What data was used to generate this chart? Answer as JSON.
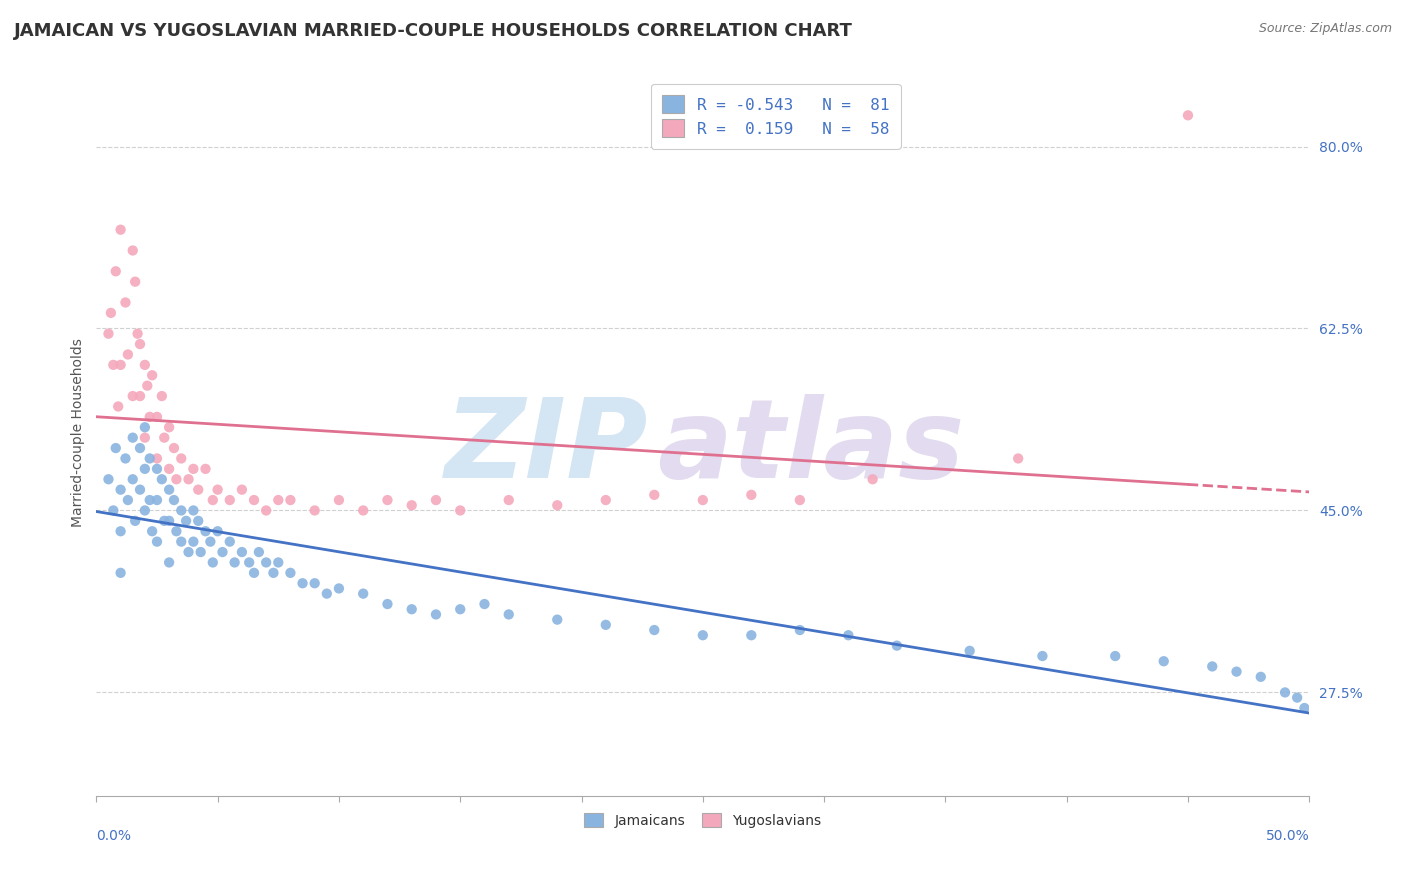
{
  "title": "JAMAICAN VS YUGOSLAVIAN MARRIED-COUPLE HOUSEHOLDS CORRELATION CHART",
  "source": "Source: ZipAtlas.com",
  "ylabel": "Married-couple Households",
  "ytick_labels": [
    "27.5%",
    "45.0%",
    "62.5%",
    "80.0%"
  ],
  "ytick_values": [
    0.275,
    0.45,
    0.625,
    0.8
  ],
  "xlim": [
    0.0,
    0.5
  ],
  "ylim": [
    0.175,
    0.875
  ],
  "legend_blue_label_r": "R = -0.543",
  "legend_blue_label_n": "N =  81",
  "legend_pink_label_r": "R =  0.159",
  "legend_pink_label_n": "N =  58",
  "blue_color": "#8ab4e0",
  "pink_color": "#f4a8bc",
  "blue_line_color": "#4472c4",
  "pink_line_color": "#e07090",
  "axis_tick_color": "#4472c4",
  "background_color": "#ffffff",
  "grid_color": "#d0d0d0",
  "title_fontsize": 13,
  "axis_label_fontsize": 10,
  "tick_fontsize": 10,
  "blue_scatter_x": [
    0.005,
    0.007,
    0.008,
    0.01,
    0.01,
    0.01,
    0.012,
    0.013,
    0.015,
    0.015,
    0.016,
    0.018,
    0.018,
    0.02,
    0.02,
    0.02,
    0.022,
    0.022,
    0.023,
    0.025,
    0.025,
    0.025,
    0.027,
    0.028,
    0.03,
    0.03,
    0.03,
    0.032,
    0.033,
    0.035,
    0.035,
    0.037,
    0.038,
    0.04,
    0.04,
    0.042,
    0.043,
    0.045,
    0.047,
    0.048,
    0.05,
    0.052,
    0.055,
    0.057,
    0.06,
    0.063,
    0.065,
    0.067,
    0.07,
    0.073,
    0.075,
    0.08,
    0.085,
    0.09,
    0.095,
    0.1,
    0.11,
    0.12,
    0.13,
    0.14,
    0.15,
    0.16,
    0.17,
    0.19,
    0.21,
    0.23,
    0.25,
    0.27,
    0.29,
    0.31,
    0.33,
    0.36,
    0.39,
    0.42,
    0.44,
    0.46,
    0.47,
    0.48,
    0.49,
    0.495,
    0.498
  ],
  "blue_scatter_y": [
    0.48,
    0.45,
    0.51,
    0.47,
    0.43,
    0.39,
    0.5,
    0.46,
    0.52,
    0.48,
    0.44,
    0.51,
    0.47,
    0.53,
    0.49,
    0.45,
    0.5,
    0.46,
    0.43,
    0.49,
    0.46,
    0.42,
    0.48,
    0.44,
    0.47,
    0.44,
    0.4,
    0.46,
    0.43,
    0.45,
    0.42,
    0.44,
    0.41,
    0.45,
    0.42,
    0.44,
    0.41,
    0.43,
    0.42,
    0.4,
    0.43,
    0.41,
    0.42,
    0.4,
    0.41,
    0.4,
    0.39,
    0.41,
    0.4,
    0.39,
    0.4,
    0.39,
    0.38,
    0.38,
    0.37,
    0.375,
    0.37,
    0.36,
    0.355,
    0.35,
    0.355,
    0.36,
    0.35,
    0.345,
    0.34,
    0.335,
    0.33,
    0.33,
    0.335,
    0.33,
    0.32,
    0.315,
    0.31,
    0.31,
    0.305,
    0.3,
    0.295,
    0.29,
    0.275,
    0.27,
    0.26
  ],
  "pink_scatter_x": [
    0.005,
    0.006,
    0.007,
    0.008,
    0.009,
    0.01,
    0.01,
    0.012,
    0.013,
    0.015,
    0.015,
    0.016,
    0.017,
    0.018,
    0.018,
    0.02,
    0.02,
    0.021,
    0.022,
    0.023,
    0.025,
    0.025,
    0.027,
    0.028,
    0.03,
    0.03,
    0.032,
    0.033,
    0.035,
    0.038,
    0.04,
    0.042,
    0.045,
    0.048,
    0.05,
    0.055,
    0.06,
    0.065,
    0.07,
    0.075,
    0.08,
    0.09,
    0.1,
    0.11,
    0.12,
    0.13,
    0.14,
    0.15,
    0.17,
    0.19,
    0.21,
    0.23,
    0.25,
    0.27,
    0.29,
    0.32,
    0.38,
    0.45
  ],
  "pink_scatter_y": [
    0.62,
    0.64,
    0.59,
    0.68,
    0.55,
    0.72,
    0.59,
    0.65,
    0.6,
    0.7,
    0.56,
    0.67,
    0.62,
    0.61,
    0.56,
    0.59,
    0.52,
    0.57,
    0.54,
    0.58,
    0.54,
    0.5,
    0.56,
    0.52,
    0.53,
    0.49,
    0.51,
    0.48,
    0.5,
    0.48,
    0.49,
    0.47,
    0.49,
    0.46,
    0.47,
    0.46,
    0.47,
    0.46,
    0.45,
    0.46,
    0.46,
    0.45,
    0.46,
    0.45,
    0.46,
    0.455,
    0.46,
    0.45,
    0.46,
    0.455,
    0.46,
    0.465,
    0.46,
    0.465,
    0.46,
    0.48,
    0.5,
    0.83
  ]
}
